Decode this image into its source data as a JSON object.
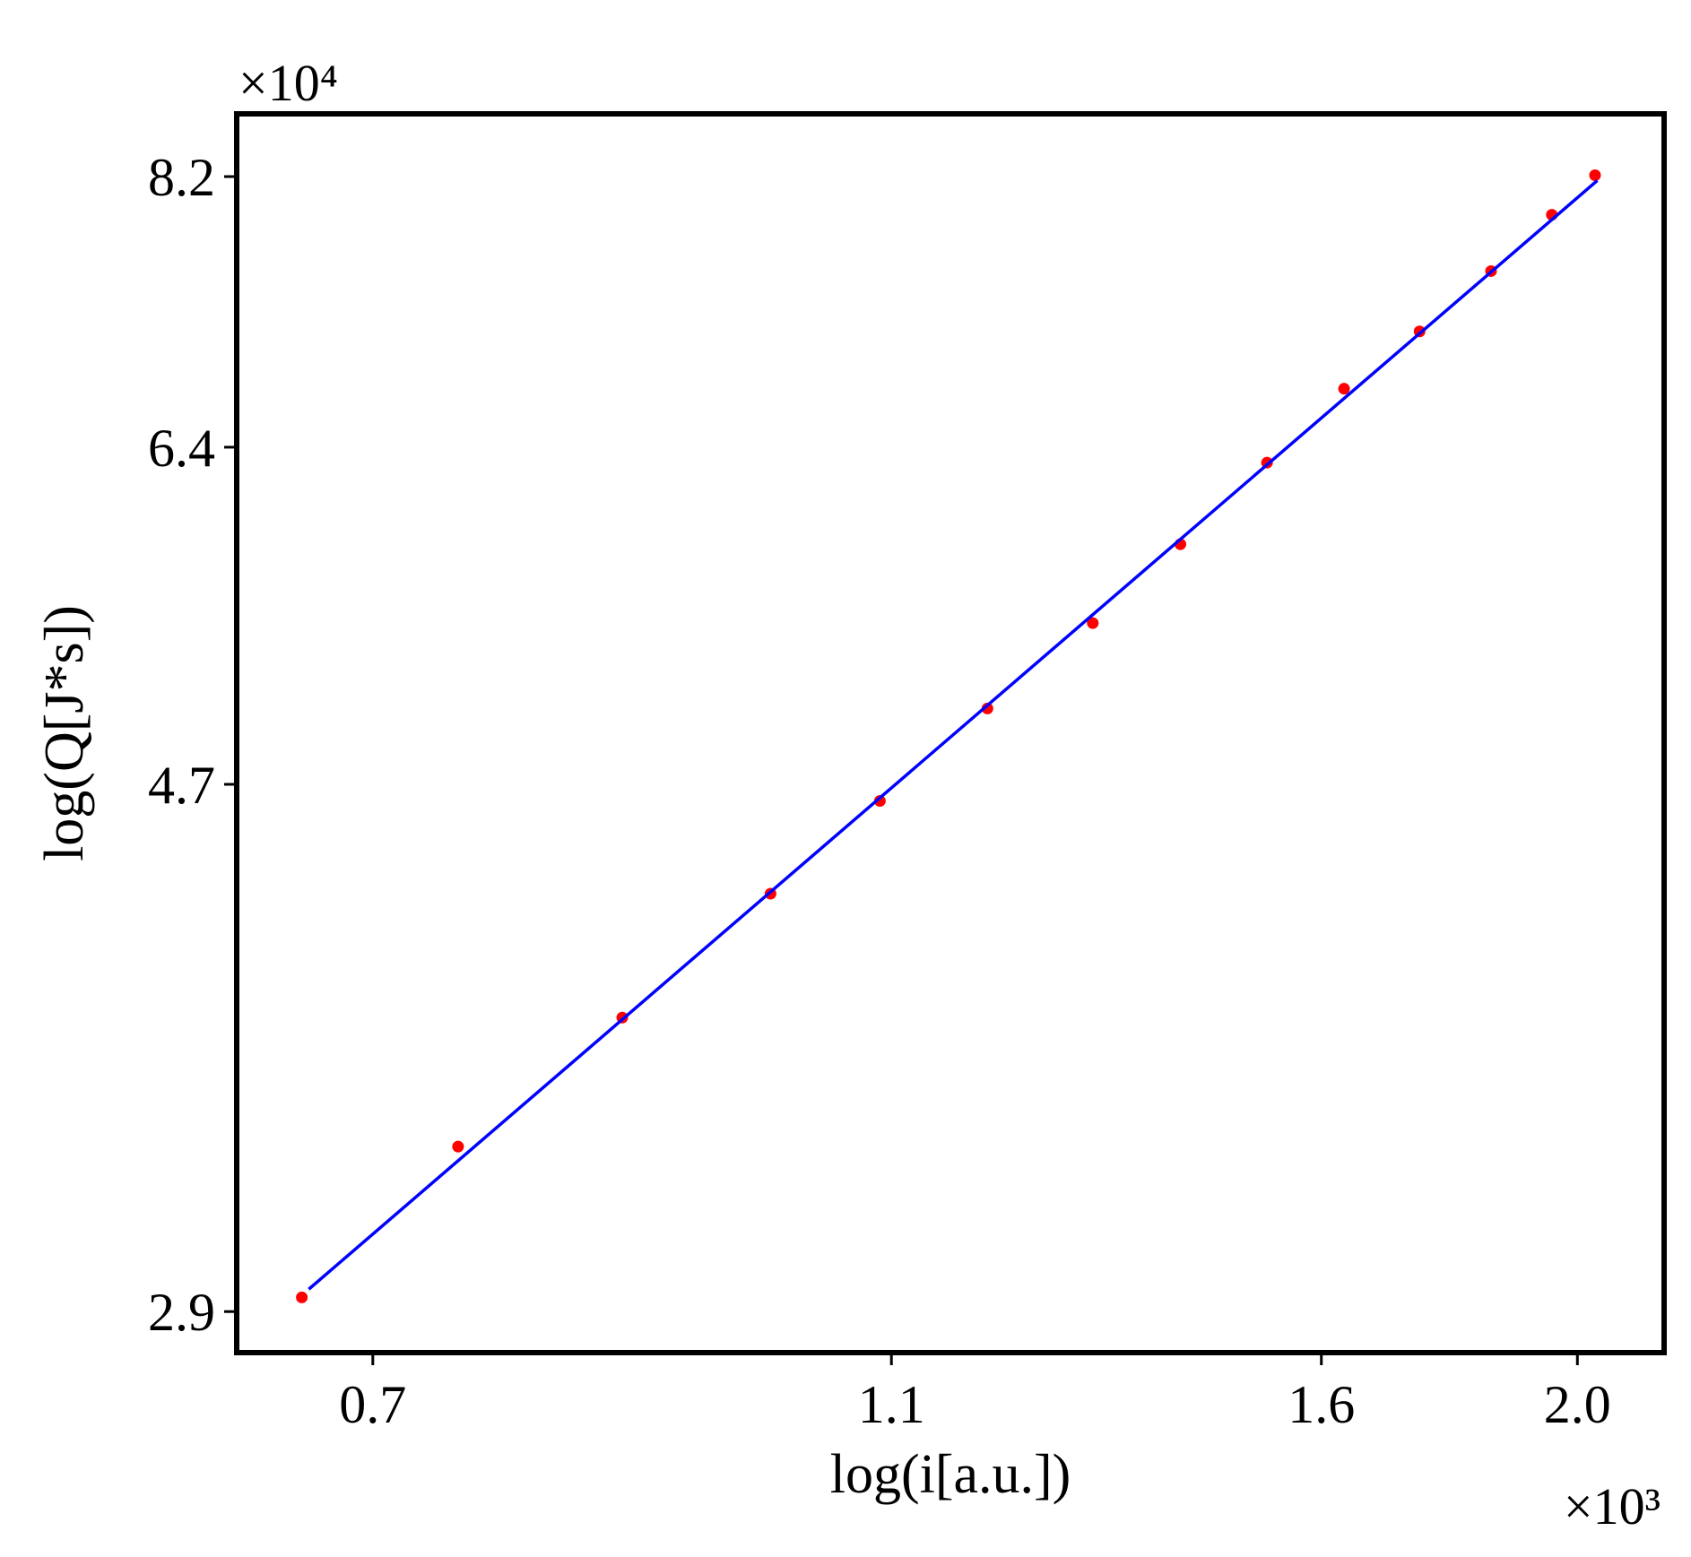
{
  "chart_data": {
    "type": "scatter",
    "x_label": "log(i[a.u.])",
    "y_label": "log(Q[J*s])",
    "x_multiplier": "×10³",
    "y_multiplier": "×10⁴",
    "xscale": "log",
    "yscale": "log",
    "xlim": [
      0.6217,
      2.157
    ],
    "ylim": [
      2.793,
      8.685
    ],
    "xticks": [
      0.7,
      1.1,
      1.6,
      {
        "value": 2,
        "label": "2.0"
      }
    ],
    "yticks": [
      2.9,
      4.7,
      6.4,
      8.2
    ],
    "series": [
      {
        "type": "scatter",
        "color": "#ff0000",
        "x": [
          0.658,
          0.754,
          0.87,
          0.99,
          1.089,
          1.196,
          1.311,
          1.415,
          1.526,
          1.632,
          1.743,
          1.855,
          1.956,
          2.031
        ],
        "values": [
          2.938,
          3.373,
          3.796,
          4.252,
          4.629,
          5.038,
          5.448,
          5.856,
          6.31,
          6.752,
          7.116,
          7.52,
          7.918,
          8.21
        ]
      },
      {
        "type": "line",
        "color": "#0000ff",
        "x": [
          0.662,
          2.035
        ],
        "values": [
          2.96,
          8.17
        ]
      }
    ]
  }
}
